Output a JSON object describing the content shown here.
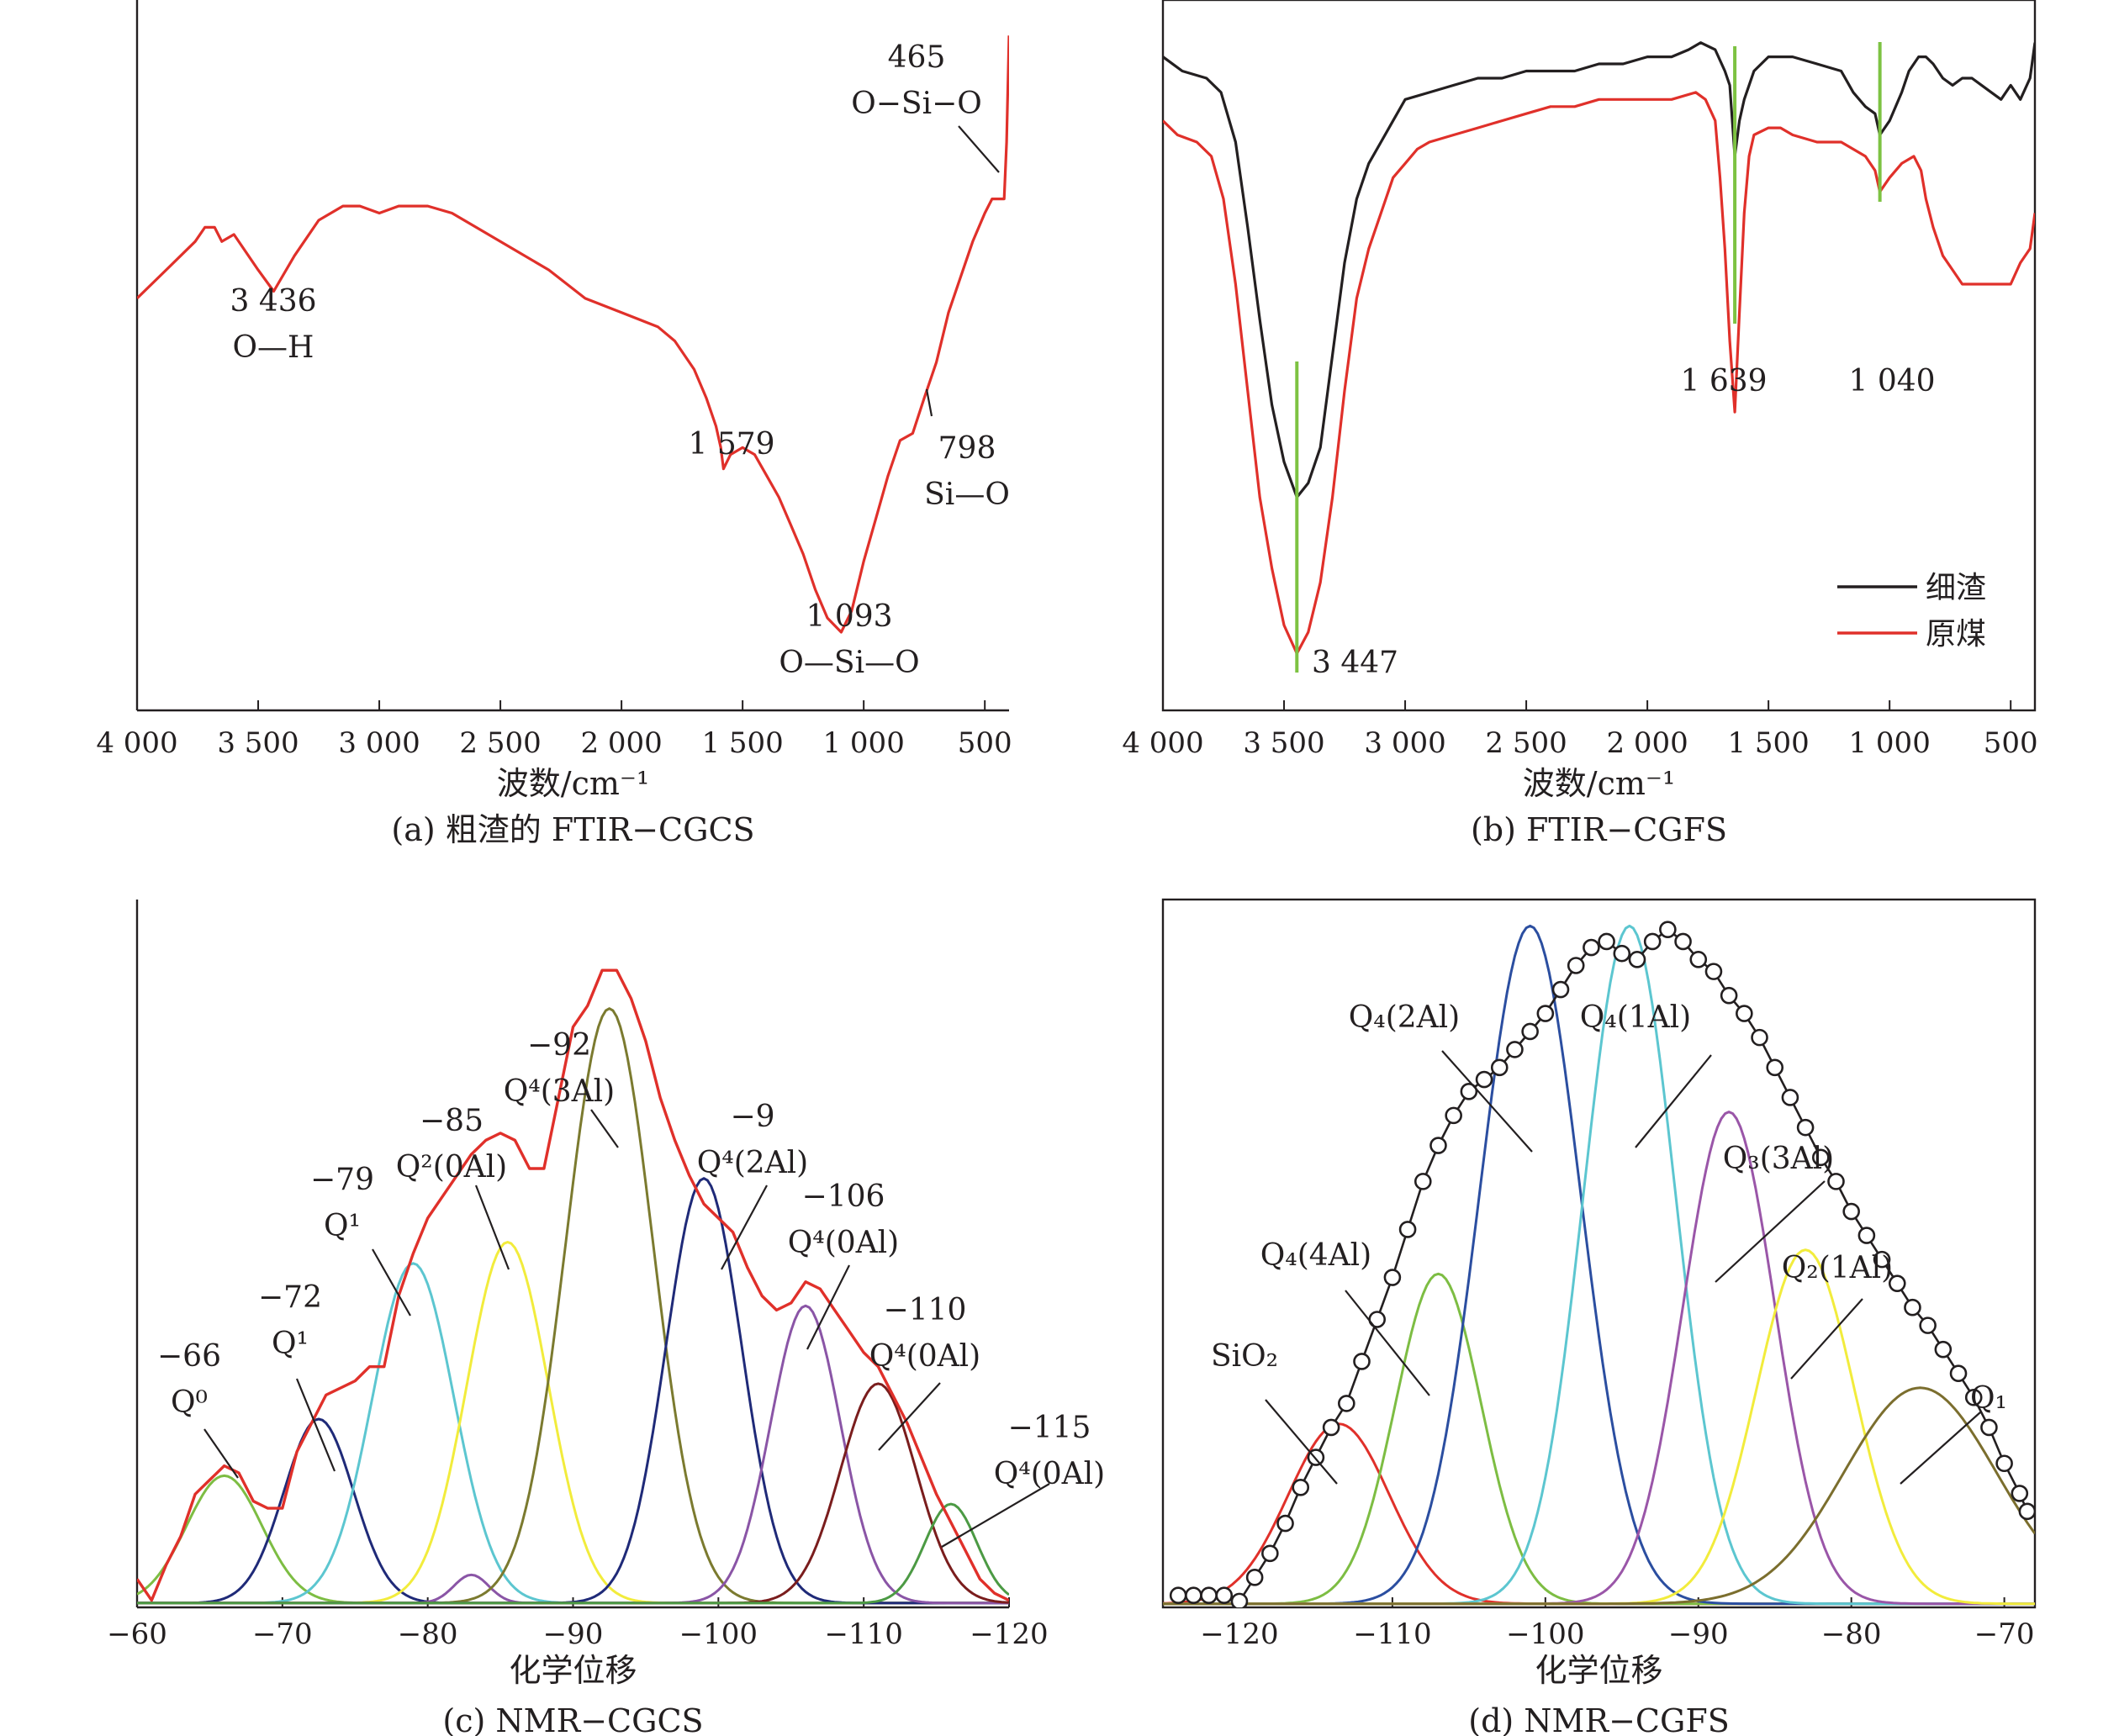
{
  "colors": {
    "red": "#e0302a",
    "black": "#231f20",
    "green_marker": "#7dc242",
    "cyan": "#5cc6d0",
    "yellow": "#f2ec3c",
    "olive": "#7b7a2f",
    "navy": "#1f2a78",
    "purple": "#8a55a6",
    "darkred": "#7a1d1d",
    "green": "#4c9a44",
    "lightgreen": "#7dbd43",
    "blue": "#2b4ea0",
    "magenta": "#9a56a8",
    "brown_olive": "#7b6e2e"
  },
  "chart_data": [
    {
      "id": "a",
      "type": "line",
      "caption": "(a) 粗渣的 FTIR−CGCS",
      "xlabel": "波数/cm⁻¹",
      "xlim": [
        4000,
        400
      ],
      "xticks": [
        {
          "v": 4000,
          "t": "4 000"
        },
        {
          "v": 3500,
          "t": "3 500"
        },
        {
          "v": 3000,
          "t": "3 000"
        },
        {
          "v": 2500,
          "t": "2 500"
        },
        {
          "v": 2000,
          "t": "2 000"
        },
        {
          "v": 1500,
          "t": "1 500"
        },
        {
          "v": 1000,
          "t": "1 000"
        },
        {
          "v": 500,
          "t": "500"
        }
      ],
      "series": [
        {
          "color": "#e0302a",
          "x": [
            4000,
            3880,
            3760,
            3720,
            3680,
            3650,
            3600,
            3500,
            3436,
            3350,
            3250,
            3150,
            3080,
            3000,
            2920,
            2800,
            2700,
            2600,
            2450,
            2300,
            2150,
            2000,
            1850,
            1780,
            1700,
            1650,
            1610,
            1590,
            1579,
            1550,
            1500,
            1450,
            1400,
            1350,
            1300,
            1250,
            1200,
            1150,
            1093,
            1050,
            1000,
            950,
            900,
            850,
            798,
            750,
            700,
            650,
            600,
            550,
            500,
            470,
            420,
            410,
            400
          ],
          "y": [
            58,
            62,
            66,
            68,
            68,
            66,
            67,
            62,
            59,
            64,
            69,
            71,
            71,
            70,
            71,
            71,
            70,
            68,
            65,
            62,
            58,
            56,
            54,
            52,
            48,
            44,
            40,
            37,
            34,
            36,
            37,
            36,
            33,
            30,
            26,
            22,
            17,
            13,
            11,
            14,
            21,
            27,
            33,
            38,
            39,
            44,
            49,
            56,
            61,
            66,
            70,
            72,
            72,
            80,
            95
          ]
        }
      ],
      "annotations": [
        {
          "lines": [
            "3 436",
            "O—H"
          ]
        },
        {
          "lines": [
            "1 579"
          ]
        },
        {
          "lines": [
            "1 093",
            "O—Si—O"
          ]
        },
        {
          "lines": [
            "798",
            "Si—O"
          ]
        },
        {
          "lines": [
            "465",
            "O−Si−O"
          ]
        }
      ]
    },
    {
      "id": "b",
      "type": "line",
      "caption": "(b) FTIR−CGFS",
      "xlabel": "波数/cm⁻¹",
      "xlim": [
        4000,
        400
      ],
      "xticks": [
        {
          "v": 4000,
          "t": "4 000"
        },
        {
          "v": 3500,
          "t": "3 500"
        },
        {
          "v": 3000,
          "t": "3 000"
        },
        {
          "v": 2500,
          "t": "2 500"
        },
        {
          "v": 2000,
          "t": "2 000"
        },
        {
          "v": 1500,
          "t": "1 500"
        },
        {
          "v": 1000,
          "t": "1 000"
        },
        {
          "v": 500,
          "t": "500"
        }
      ],
      "legend": [
        {
          "label": "细渣",
          "color": "#231f20"
        },
        {
          "label": "原煤",
          "color": "#e0302a"
        }
      ],
      "series": [
        {
          "name": "细渣",
          "color": "#231f20",
          "x": [
            4000,
            3920,
            3820,
            3760,
            3700,
            3650,
            3600,
            3550,
            3500,
            3447,
            3400,
            3350,
            3300,
            3250,
            3200,
            3150,
            3100,
            3050,
            3000,
            2900,
            2800,
            2700,
            2600,
            2500,
            2400,
            2300,
            2200,
            2100,
            2000,
            1900,
            1830,
            1780,
            1720,
            1680,
            1660,
            1639,
            1620,
            1600,
            1560,
            1500,
            1450,
            1400,
            1300,
            1200,
            1150,
            1100,
            1060,
            1040,
            1000,
            950,
            920,
            880,
            850,
            820,
            780,
            740,
            700,
            660,
            620,
            580,
            540,
            500,
            460,
            420,
            400
          ],
          "y": [
            92,
            90,
            89,
            87,
            80,
            68,
            55,
            43,
            35,
            30,
            32,
            37,
            50,
            63,
            72,
            77,
            80,
            83,
            86,
            87,
            88,
            89,
            89,
            90,
            90,
            90,
            91,
            91,
            92,
            92,
            93,
            94,
            93,
            90,
            88,
            78,
            83,
            86,
            90,
            92,
            92,
            92,
            91,
            90,
            87,
            85,
            84,
            81,
            83,
            87,
            90,
            92,
            92,
            91,
            89,
            88,
            89,
            89,
            88,
            87,
            86,
            88,
            86,
            89,
            94
          ]
        },
        {
          "name": "原煤",
          "color": "#e0302a",
          "x": [
            4000,
            3940,
            3860,
            3800,
            3750,
            3700,
            3650,
            3600,
            3550,
            3500,
            3447,
            3400,
            3350,
            3300,
            3250,
            3200,
            3150,
            3100,
            3050,
            3000,
            2950,
            2900,
            2800,
            2700,
            2600,
            2500,
            2400,
            2300,
            2200,
            2100,
            2000,
            1900,
            1800,
            1760,
            1720,
            1700,
            1680,
            1660,
            1639,
            1620,
            1600,
            1580,
            1560,
            1500,
            1450,
            1400,
            1300,
            1200,
            1100,
            1060,
            1040,
            1000,
            950,
            900,
            870,
            850,
            820,
            780,
            740,
            700,
            660,
            620,
            580,
            540,
            500,
            460,
            420,
            400
          ],
          "y": [
            83,
            81,
            80,
            78,
            72,
            60,
            45,
            30,
            20,
            12,
            8,
            11,
            18,
            30,
            45,
            58,
            65,
            70,
            75,
            77,
            79,
            80,
            81,
            82,
            83,
            84,
            85,
            85,
            86,
            86,
            86,
            86,
            87,
            86,
            83,
            75,
            65,
            52,
            42,
            56,
            70,
            78,
            81,
            82,
            82,
            81,
            80,
            80,
            78,
            76,
            73,
            75,
            77,
            78,
            76,
            72,
            68,
            64,
            62,
            60,
            60,
            60,
            60,
            60,
            60,
            63,
            65,
            70
          ]
        }
      ],
      "markers": [
        {
          "x": 3447,
          "label": "3 447"
        },
        {
          "x": 1639,
          "label": "1 639"
        },
        {
          "x": 1040,
          "label": "1 040"
        }
      ]
    },
    {
      "id": "c",
      "type": "line",
      "caption": "(c) NMR−CGCS",
      "xlabel": "化学位移",
      "xlim": [
        -60,
        -120
      ],
      "xticks": [
        {
          "v": -60,
          "t": "−60"
        },
        {
          "v": -70,
          "t": "−70"
        },
        {
          "v": -80,
          "t": "−80"
        },
        {
          "v": -90,
          "t": "−90"
        },
        {
          "v": -100,
          "t": "−100"
        },
        {
          "v": -110,
          "t": "−110"
        },
        {
          "v": -120,
          "t": "−120"
        }
      ],
      "envelope": {
        "color": "#e0302a",
        "x": [
          -60,
          -61,
          -62,
          -63,
          -64,
          -65,
          -66,
          -67,
          -68,
          -69,
          -70,
          -71,
          -72,
          -73,
          -74,
          -75,
          -76,
          -77,
          -78,
          -79,
          -80,
          -81,
          -82,
          -83,
          -84,
          -85,
          -86,
          -87,
          -88,
          -89,
          -90,
          -91,
          -92,
          -93,
          -94,
          -95,
          -96,
          -97,
          -98,
          -99,
          -100,
          -101,
          -102,
          -103,
          -104,
          -105,
          -106,
          -107,
          -108,
          -109,
          -110,
          -111,
          -112,
          -113,
          -114,
          -115,
          -116,
          -117,
          -118,
          -119,
          -120
        ],
        "y": [
          4,
          1,
          6,
          10,
          16,
          18,
          20,
          19,
          15,
          14,
          14,
          22,
          26,
          30,
          31,
          32,
          34,
          34,
          44,
          50,
          55,
          58,
          61,
          64,
          66,
          67,
          66,
          62,
          62,
          72,
          82,
          85,
          90,
          90,
          86,
          80,
          72,
          66,
          61,
          57,
          55,
          53,
          48,
          44,
          42,
          43,
          46,
          45,
          42,
          39,
          36,
          34,
          30,
          26,
          21,
          16,
          12,
          8,
          4,
          2,
          1
        ]
      },
      "peaks": [
        {
          "center": -66,
          "height": 18,
          "width": 2.6,
          "color": "#7dbd43"
        },
        {
          "center": -72.5,
          "height": 26,
          "width": 2.4,
          "color": "#1f2a78"
        },
        {
          "center": -79,
          "height": 48,
          "width": 2.8,
          "color": "#5cc6d0"
        },
        {
          "center": -83,
          "height": 4,
          "width": 1.2,
          "color": "#8a55a6"
        },
        {
          "center": -85.5,
          "height": 51,
          "width": 2.8,
          "color": "#f2ec3c"
        },
        {
          "center": -92.5,
          "height": 84,
          "width": 3.0,
          "color": "#7b7a2f"
        },
        {
          "center": -99,
          "height": 60,
          "width": 2.6,
          "color": "#1f2a78"
        },
        {
          "center": -106,
          "height": 42,
          "width": 2.4,
          "color": "#8a55a6"
        },
        {
          "center": -111,
          "height": 31,
          "width": 2.6,
          "color": "#7a1d1d"
        },
        {
          "center": -116,
          "height": 14,
          "width": 1.8,
          "color": "#4c9a44"
        }
      ],
      "annotations": [
        {
          "lines": [
            "−66",
            "Q⁰"
          ]
        },
        {
          "lines": [
            "−72",
            "Q¹"
          ]
        },
        {
          "lines": [
            "−79",
            "Q¹"
          ]
        },
        {
          "lines": [
            "−85",
            "Q²(0Al)"
          ]
        },
        {
          "lines": [
            "−92",
            "Q⁴(3Al)"
          ]
        },
        {
          "lines": [
            "−9",
            "Q⁴(2Al)"
          ]
        },
        {
          "lines": [
            "−106",
            "Q⁴(0Al)"
          ]
        },
        {
          "lines": [
            "−110",
            "Q⁴(0Al)"
          ]
        },
        {
          "lines": [
            "−115",
            "Q⁴(0Al)"
          ]
        }
      ]
    },
    {
      "id": "d",
      "type": "line",
      "caption": "(d) NMR−CGFS",
      "xlabel": "化学位移",
      "xlim": [
        -125,
        -68
      ],
      "xticks": [
        {
          "v": -120,
          "t": "−120"
        },
        {
          "v": -110,
          "t": "−110"
        },
        {
          "v": -100,
          "t": "−100"
        },
        {
          "v": -90,
          "t": "−90"
        },
        {
          "v": -80,
          "t": "−80"
        },
        {
          "v": -70,
          "t": "−70"
        }
      ],
      "envelope": {
        "color": "#231f20",
        "x": [
          -124,
          -123,
          -122,
          -121,
          -120,
          -119,
          -118,
          -117,
          -116,
          -115,
          -114,
          -113,
          -112,
          -111,
          -110,
          -109,
          -108,
          -107,
          -106,
          -105,
          -104,
          -103,
          -102,
          -101,
          -100,
          -99,
          -98,
          -97,
          -96,
          -95,
          -94,
          -93,
          -92,
          -91,
          -90,
          -89,
          -88,
          -87,
          -86,
          -85,
          -84,
          -83,
          -82,
          -81,
          -80,
          -79,
          -78,
          -77,
          -76,
          -75,
          -74,
          -73,
          -72,
          -71,
          -70,
          -69,
          -68.5
        ],
        "y": [
          2,
          2,
          2,
          2,
          1,
          5,
          9,
          14,
          20,
          25,
          30,
          34,
          41,
          48,
          55,
          63,
          71,
          77,
          82,
          86,
          88,
          90,
          93,
          96,
          99,
          103,
          107,
          110,
          111,
          109,
          108,
          111,
          113,
          111,
          108,
          106,
          102,
          99,
          95,
          90,
          85,
          80,
          75,
          71,
          66,
          62,
          58,
          54,
          50,
          47,
          43,
          39,
          35,
          30,
          24,
          19,
          16
        ]
      },
      "peaks": [
        {
          "center": -113.5,
          "height": 30,
          "width": 3.3,
          "color": "#e0302a"
        },
        {
          "center": -107,
          "height": 55,
          "width": 2.8,
          "color": "#7dbd43"
        },
        {
          "center": -101,
          "height": 113,
          "width": 3.3,
          "color": "#2b4ea0"
        },
        {
          "center": -94.5,
          "height": 113,
          "width": 3.0,
          "color": "#5cc6d0"
        },
        {
          "center": -88,
          "height": 82,
          "width": 3.0,
          "color": "#9a56a8"
        },
        {
          "center": -83,
          "height": 59,
          "width": 3.2,
          "color": "#f2ec3c"
        },
        {
          "center": -75.5,
          "height": 36,
          "width": 5.0,
          "color": "#7b6e2e"
        }
      ],
      "annotations": [
        {
          "lines": [
            "SiO₂"
          ]
        },
        {
          "lines": [
            "Q₄(4Al)"
          ]
        },
        {
          "lines": [
            "Q₄(2Al)"
          ]
        },
        {
          "lines": [
            "Q₄(1Al)"
          ]
        },
        {
          "lines": [
            "Q₃(3Al)"
          ]
        },
        {
          "lines": [
            "Q₂(1Al)"
          ]
        },
        {
          "lines": [
            "Q₁"
          ]
        }
      ]
    }
  ]
}
